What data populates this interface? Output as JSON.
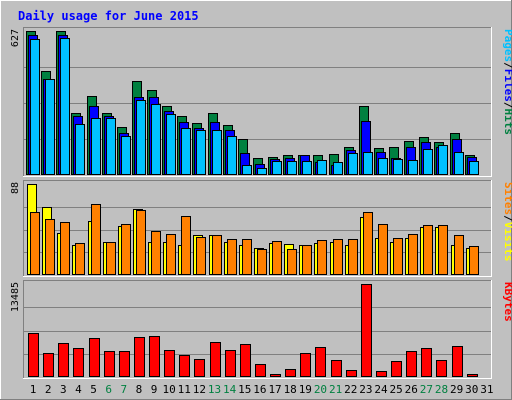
{
  "chart_data": {
    "type": "bar",
    "title": "Daily usage for June 2015",
    "categories": [
      "1",
      "2",
      "3",
      "4",
      "5",
      "6",
      "7",
      "8",
      "9",
      "10",
      "11",
      "12",
      "13",
      "14",
      "15",
      "16",
      "17",
      "18",
      "19",
      "20",
      "21",
      "22",
      "23",
      "24",
      "25",
      "26",
      "27",
      "28",
      "29",
      "30",
      "31"
    ],
    "weekend_days": [
      6,
      7,
      13,
      14,
      20,
      21,
      27,
      28
    ],
    "panels": [
      {
        "name": "pages-files-hits",
        "max_label": "627",
        "ymax": 627,
        "legend": [
          {
            "text": "Pages",
            "color": "#00c0ff"
          },
          {
            "text": "/",
            "color": "#000000"
          },
          {
            "text": "Files",
            "color": "#0000ff"
          },
          {
            "text": "/",
            "color": "#000000"
          },
          {
            "text": "Hits",
            "color": "#008040"
          }
        ],
        "series": [
          {
            "name": "Hits",
            "color": "#008040",
            "values": [
              627,
              455,
              627,
              272,
              345,
              268,
              210,
              408,
              370,
              300,
              259,
              225,
              268,
              219,
              155,
              75,
              80,
              89,
              85,
              89,
              91,
              122,
              300,
              117,
              120,
              146,
              166,
              143,
              185,
              87,
              0
            ]
          },
          {
            "name": "Files",
            "color": "#0000ff",
            "values": [
              610,
              420,
              610,
              255,
              300,
              255,
              185,
              340,
              340,
              280,
              230,
              205,
              230,
              195,
              95,
              50,
              70,
              72,
              85,
              55,
              45,
              110,
              235,
              100,
              75,
              120,
              145,
              122,
              155,
              78,
              0
            ]
          },
          {
            "name": "Pages",
            "color": "#00c0ff",
            "values": [
              590,
              420,
              595,
              220,
              250,
              250,
              170,
              325,
              310,
              265,
              205,
              195,
              195,
              170,
              45,
              30,
              60,
              60,
              60,
              65,
              55,
              95,
              100,
              75,
              70,
              65,
              115,
              130,
              100,
              60,
              0
            ]
          }
        ]
      },
      {
        "name": "sites-visits",
        "max_label": "88",
        "ymax": 88,
        "legend": [
          {
            "text": "Sites",
            "color": "#ff8000"
          },
          {
            "text": "/",
            "color": "#000000"
          },
          {
            "text": "Visits",
            "color": "#ffff00"
          }
        ],
        "series": [
          {
            "name": "Visits",
            "color": "#ffff00",
            "values": [
              88,
              66,
              41,
              29,
              52,
              32,
              47,
              64,
              32,
              32,
              29,
              39,
              39,
              32,
              29,
              26,
              31,
              30,
              29,
              31,
              32,
              29,
              56,
              36,
              32,
              36,
              46,
              46,
              29,
              26,
              0
            ]
          },
          {
            "name": "Sites",
            "color": "#ff8000",
            "values": [
              61,
              54,
              51,
              31,
              69,
              32,
              49,
              63,
              43,
              40,
              57,
              37,
              39,
              35,
              35,
              25,
              33,
              25,
              29,
              34,
              35,
              35,
              61,
              49,
              36,
              40,
              48,
              48,
              39,
              28,
              0
            ]
          }
        ]
      },
      {
        "name": "kbytes",
        "max_label": "13485",
        "ymax": 13485,
        "legend": [
          {
            "text": "KBytes",
            "color": "#ff0000"
          }
        ],
        "series": [
          {
            "name": "KBytes",
            "color": "#ff0000",
            "values": [
              6450,
              3450,
              4900,
              4250,
              5700,
              3700,
              3700,
              5850,
              5950,
              3850,
              3150,
              2600,
              5100,
              3850,
              4800,
              1950,
              420,
              1100,
              3450,
              4300,
              2450,
              1050,
              13485,
              850,
              2300,
              3750,
              4150,
              2400,
              4450,
              400,
              0
            ]
          }
        ]
      }
    ]
  }
}
